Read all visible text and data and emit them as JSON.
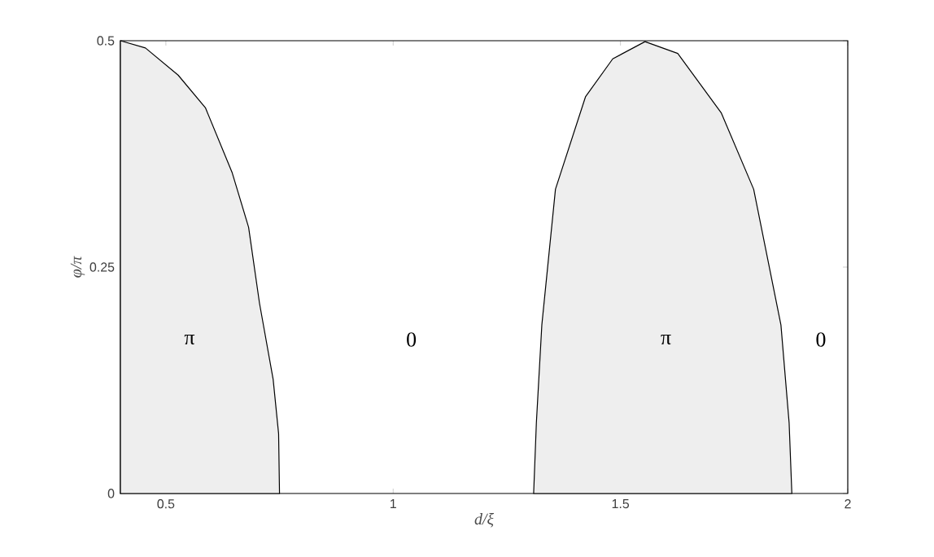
{
  "chart_data": {
    "type": "area",
    "xlabel": "d/ξ",
    "ylabel": "φ/π",
    "xlim": [
      0.4,
      2
    ],
    "ylim": [
      0,
      0.5
    ],
    "xticks": [
      0.5,
      1,
      1.5,
      2
    ],
    "yticks": [
      0,
      0.25,
      0.5
    ],
    "series": [
      {
        "color": "#eeeeee",
        "x": [
          0.4,
          0.455,
          0.527,
          0.587,
          0.646,
          0.682,
          0.706,
          0.736,
          0.748,
          0.75
        ],
        "values": [
          0.5,
          0.492,
          0.462,
          0.426,
          0.354,
          0.294,
          0.21,
          0.126,
          0.066,
          0
        ]
      },
      {
        "color": "#eeeeee",
        "x": [
          1.309,
          1.315,
          1.327,
          1.357,
          1.423,
          1.483,
          1.554,
          1.626,
          1.722,
          1.793,
          1.853,
          1.871,
          1.877
        ],
        "values": [
          0,
          0.078,
          0.186,
          0.336,
          0.438,
          0.48,
          0.499,
          0.486,
          0.42,
          0.336,
          0.186,
          0.078,
          0
        ]
      }
    ],
    "annotations": [
      "π",
      "0",
      "π",
      "0"
    ]
  }
}
